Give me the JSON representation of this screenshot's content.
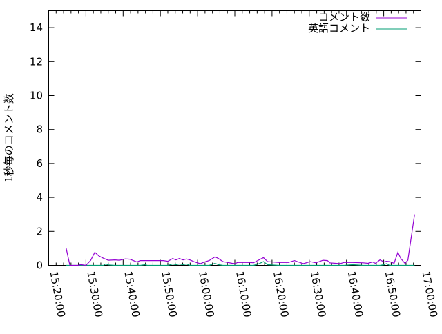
{
  "chart_data": {
    "type": "line",
    "title": "",
    "xlabel": "",
    "ylabel": "1秒毎のコメント数",
    "xlim": [
      "15:20:00",
      "17:00:00"
    ],
    "ylim": [
      0,
      15
    ],
    "xticks": [
      "15:20:00",
      "15:30:00",
      "15:40:00",
      "15:50:00",
      "16:00:00",
      "16:10:00",
      "16:20:00",
      "16:30:00",
      "16:40:00",
      "16:50:00",
      "17:00:00"
    ],
    "yticks": [
      "0",
      "2",
      "4",
      "6",
      "8",
      "10",
      "12",
      "14"
    ],
    "grid": false,
    "legend": "top-right",
    "x": [
      "15:24:42",
      "15:25:42",
      "15:27:54",
      "15:28:30",
      "15:30:00",
      "15:31:18",
      "15:32:24",
      "15:33:30",
      "15:34:42",
      "15:35:18",
      "15:36:00",
      "15:37:48",
      "15:39:00",
      "15:40:36",
      "15:41:48",
      "15:43:42",
      "15:44:36",
      "15:45:54",
      "15:46:30",
      "15:50:48",
      "15:52:00",
      "15:53:18",
      "15:54:12",
      "15:55:06",
      "15:56:06",
      "15:57:00",
      "15:57:54",
      "15:59:12",
      "16:00:42",
      "16:01:54",
      "16:03:06",
      "16:04:42",
      "16:05:36",
      "16:06:48",
      "16:09:18",
      "16:10:06",
      "16:10:42",
      "16:14:06",
      "16:15:00",
      "16:16:18",
      "16:17:42",
      "16:18:48",
      "16:21:54",
      "16:24:24",
      "16:26:00",
      "16:28:24",
      "16:30:18",
      "16:31:48",
      "16:33:42",
      "16:34:54",
      "16:35:30",
      "16:38:18",
      "16:39:18",
      "16:41:42",
      "16:44:30",
      "16:45:48",
      "16:47:00",
      "16:47:48",
      "16:49:00",
      "16:50:06",
      "16:50:42",
      "16:51:36",
      "16:52:48",
      "16:53:48",
      "16:54:36",
      "16:55:42",
      "16:56:30",
      "16:58:18"
    ],
    "series": [
      {
        "name": "コメント数",
        "color": "#9400d3",
        "values": [
          1.0,
          0,
          0,
          0.05,
          0,
          0.3,
          0.77,
          0.55,
          0.42,
          0.36,
          0.3,
          0.32,
          0.3,
          0.38,
          0.36,
          0.2,
          0.28,
          0.28,
          0.28,
          0.28,
          0.24,
          0.4,
          0.32,
          0.4,
          0.32,
          0.38,
          0.32,
          0.2,
          0.1,
          0.2,
          0.28,
          0.5,
          0.4,
          0.22,
          0.12,
          0.1,
          0.17,
          0.17,
          0.15,
          0.3,
          0.45,
          0.22,
          0.17,
          0.17,
          0.28,
          0.1,
          0.22,
          0.15,
          0.3,
          0.28,
          0.15,
          0.1,
          0.17,
          0.17,
          0.15,
          0.12,
          0.2,
          0.12,
          0.32,
          0.2,
          0.24,
          0.22,
          0.12,
          0.77,
          0.4,
          0.12,
          0.3,
          3.0
        ]
      },
      {
        "name": "英語コメント",
        "color": "#009e73",
        "values": [
          0,
          0,
          0,
          0,
          0,
          0,
          0,
          0,
          0,
          0.08,
          0.03,
          0,
          0,
          0,
          0,
          0,
          0,
          0.04,
          0,
          0,
          0,
          0.08,
          0.04,
          0.08,
          0.04,
          0.08,
          0,
          0,
          0,
          0,
          0,
          0.12,
          0.04,
          0,
          0,
          0,
          0,
          0,
          0,
          0.08,
          0.22,
          0.04,
          0,
          0,
          0,
          0,
          0,
          0,
          0,
          0,
          0,
          0,
          0,
          0.04,
          0,
          0,
          0,
          0,
          0,
          0.04,
          0.1,
          0,
          0,
          0,
          0,
          0,
          0,
          0
        ]
      }
    ]
  }
}
